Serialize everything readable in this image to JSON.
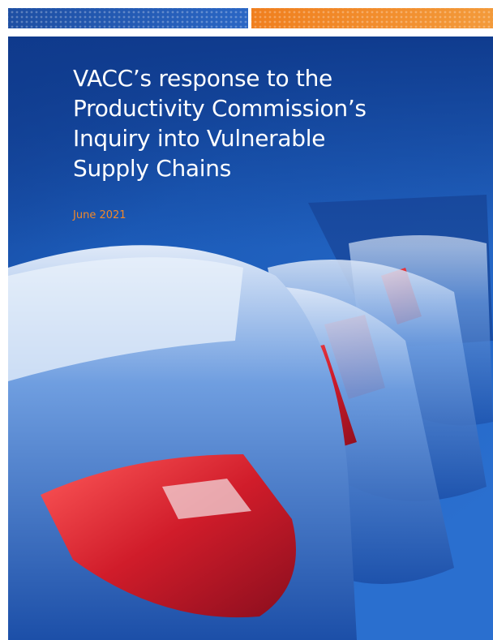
{
  "cover": {
    "title_lines": [
      "VACC’s response to the",
      "Productivity Commission’s",
      "Inquiry into Vulnerable",
      "Supply Chains"
    ],
    "date": "June 2021"
  }
}
